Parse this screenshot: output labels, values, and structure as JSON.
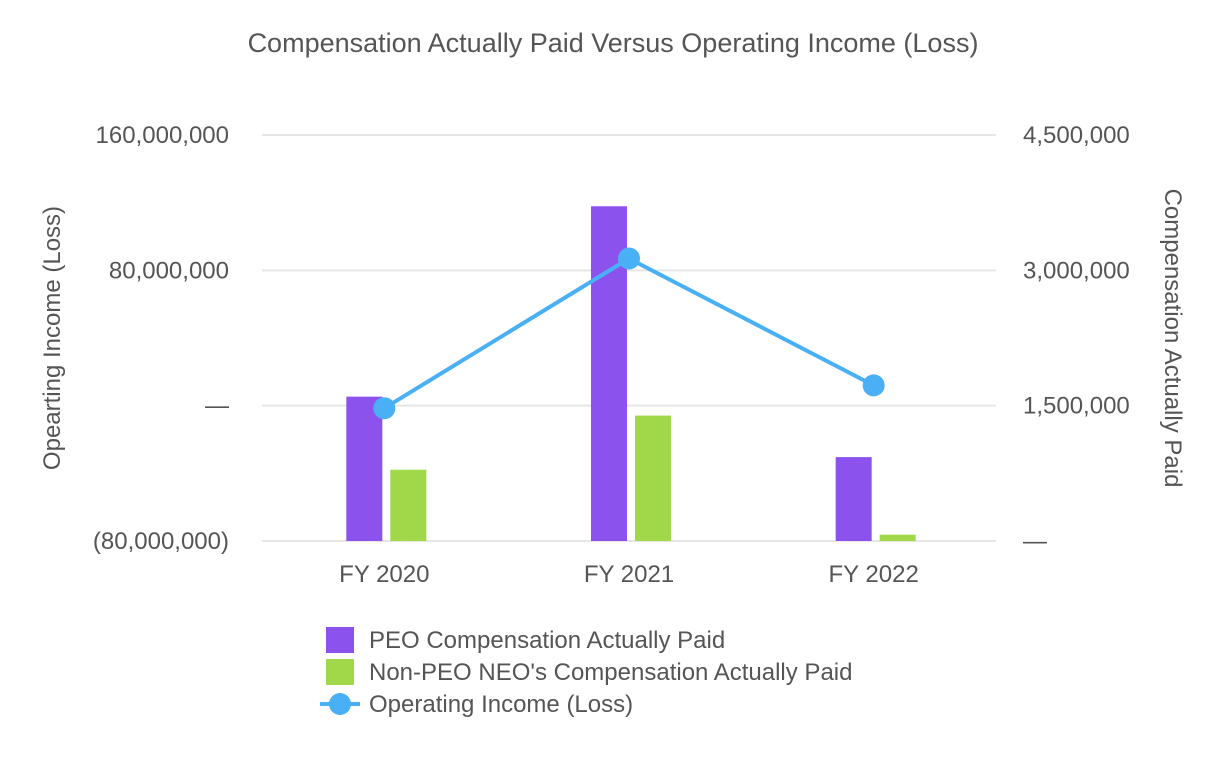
{
  "chart_data": {
    "type": "bar",
    "title": "Compensation Actually Paid Versus Operating Income (Loss)",
    "categories": [
      "FY 2020",
      "FY 2021",
      "FY 2022"
    ],
    "series": [
      {
        "name": "PEO Compensation Actually Paid",
        "kind": "bar",
        "axis": "right",
        "color": "#8c52ee",
        "values": [
          1600000,
          3710000,
          930000
        ]
      },
      {
        "name": "Non-PEO NEO's Compensation Actually Paid",
        "kind": "bar",
        "axis": "right",
        "color": "#a1d84a",
        "values": [
          790000,
          1390000,
          70000
        ]
      },
      {
        "name": "Operating Income (Loss)",
        "kind": "line",
        "axis": "left",
        "color": "#4ab0f5",
        "values": [
          -1500000,
          87000000,
          12000000
        ]
      }
    ],
    "left_axis": {
      "label": "Opearting Income (Loss)",
      "range": [
        -80000000,
        160000000
      ],
      "ticks": [
        160000000,
        80000000,
        0,
        -80000000
      ],
      "tick_labels": [
        "160,000,000",
        "80,000,000",
        "—",
        "(80,000,000)"
      ]
    },
    "right_axis": {
      "label": "Compensation Actually Paid",
      "range": [
        0,
        4500000
      ],
      "ticks": [
        4500000,
        3000000,
        1500000,
        0
      ],
      "tick_labels": [
        "4,500,000",
        "3,000,000",
        "1,500,000",
        "—"
      ]
    },
    "grid": true,
    "legend_position": "bottom"
  }
}
